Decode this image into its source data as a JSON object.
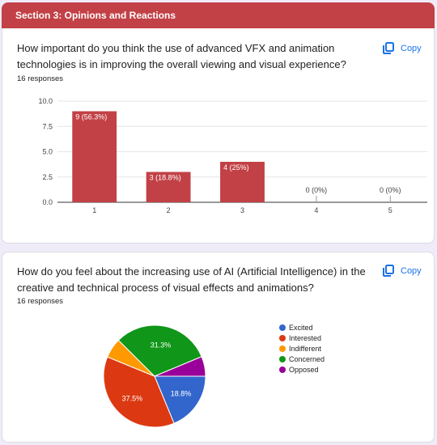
{
  "section": {
    "title": "Section 3: Opinions and Reactions"
  },
  "questions": [
    {
      "text": "How important do you think the use of advanced VFX and animation technologies is in improving the overall viewing and visual experience?",
      "responses": "16 responses",
      "copy_label": "Copy"
    },
    {
      "text": "How do you feel about the increasing use of AI (Artificial Intelligence) in the creative and technical process of visual effects and animations?",
      "responses": "16 responses",
      "copy_label": "Copy"
    }
  ],
  "chart_data": [
    {
      "type": "bar",
      "categories": [
        "1",
        "2",
        "3",
        "4",
        "5"
      ],
      "values": [
        9,
        3,
        4,
        0,
        0
      ],
      "data_labels": [
        "9 (56.3%)",
        "3 (18.8%)",
        "4 (25%)",
        "0 (0%)",
        "0 (0%)"
      ],
      "ylim": [
        0,
        10
      ],
      "yticks": [
        "0.0",
        "2.5",
        "5.0",
        "7.5",
        "10.0"
      ],
      "color": "#c24146",
      "grid": true
    },
    {
      "type": "pie",
      "labels": [
        "Excited",
        "Interested",
        "Indifferent",
        "Concerned",
        "Opposed"
      ],
      "values": [
        18.8,
        37.5,
        6.3,
        31.3,
        6.3
      ],
      "slice_labels": [
        "18.8%",
        "37.5%",
        "",
        "31.3%",
        ""
      ],
      "colors": [
        "#3366cc",
        "#dc3912",
        "#ff9900",
        "#109618",
        "#990099"
      ],
      "legend_position": "right"
    }
  ]
}
